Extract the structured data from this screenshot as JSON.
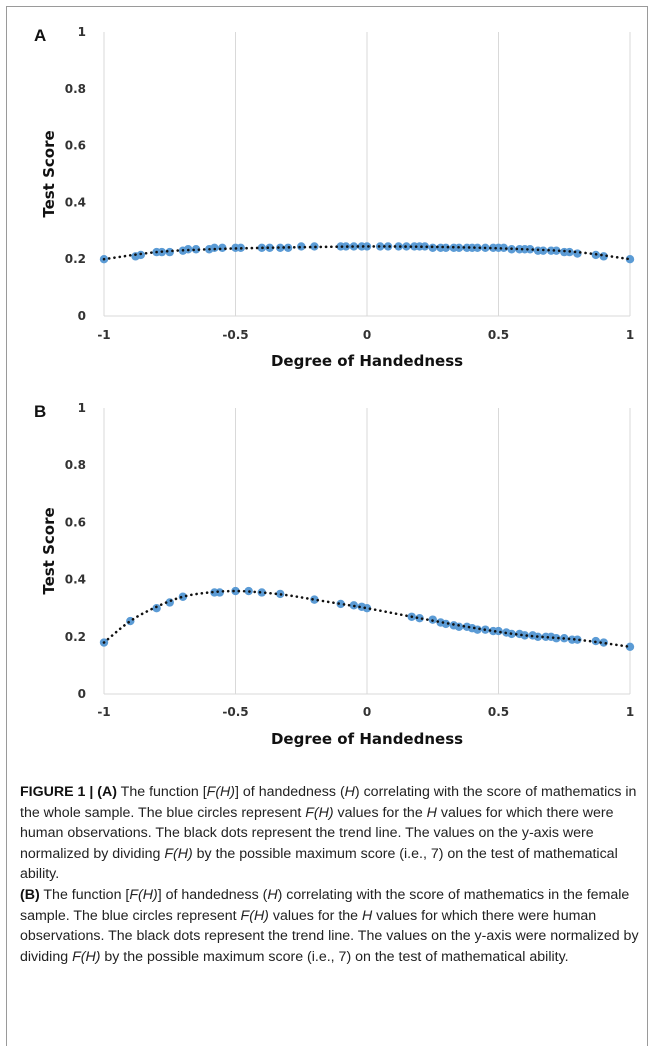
{
  "panels": [
    {
      "letter": "A"
    },
    {
      "letter": "B"
    }
  ],
  "chart_data": [
    {
      "type": "scatter",
      "panel": "A",
      "xlabel": "Degree of Handedness",
      "ylabel": "Test  Score",
      "xlim": [
        -1,
        1
      ],
      "ylim": [
        0,
        1
      ],
      "x_ticks": [
        -1,
        -0.5,
        0,
        0.5,
        1
      ],
      "x_tick_labels": [
        "-1",
        "-0.5",
        "0",
        "0.5",
        "1"
      ],
      "y_ticks": [
        0,
        0.2,
        0.4,
        0.6,
        0.8,
        1
      ],
      "y_tick_labels": [
        "0",
        "0.2",
        "0.4",
        "0.6",
        "0.8",
        "1"
      ],
      "grid": "vertical",
      "colors": {
        "points": "#5b9bd5",
        "trend": "#111111",
        "grid": "#d9d9d9"
      },
      "series": [
        {
          "kind": "points",
          "x": [
            -1,
            -0.88,
            -0.86,
            -0.8,
            -0.78,
            -0.75,
            -0.7,
            -0.68,
            -0.65,
            -0.6,
            -0.58,
            -0.55,
            -0.5,
            -0.48,
            -0.4,
            -0.37,
            -0.33,
            -0.3,
            -0.25,
            -0.2,
            -0.1,
            -0.08,
            -0.05,
            -0.02,
            0,
            0.05,
            0.08,
            0.12,
            0.15,
            0.18,
            0.2,
            0.22,
            0.25,
            0.28,
            0.3,
            0.33,
            0.35,
            0.38,
            0.4,
            0.42,
            0.45,
            0.48,
            0.5,
            0.52,
            0.55,
            0.58,
            0.6,
            0.62,
            0.65,
            0.67,
            0.7,
            0.72,
            0.75,
            0.77,
            0.8,
            0.87,
            0.9,
            1
          ],
          "y": [
            0.2,
            0.21,
            0.215,
            0.225,
            0.225,
            0.225,
            0.23,
            0.235,
            0.235,
            0.235,
            0.24,
            0.24,
            0.24,
            0.24,
            0.24,
            0.24,
            0.24,
            0.24,
            0.245,
            0.245,
            0.245,
            0.245,
            0.245,
            0.245,
            0.245,
            0.245,
            0.245,
            0.245,
            0.245,
            0.245,
            0.245,
            0.245,
            0.24,
            0.24,
            0.24,
            0.24,
            0.24,
            0.24,
            0.24,
            0.24,
            0.24,
            0.24,
            0.24,
            0.24,
            0.235,
            0.235,
            0.235,
            0.235,
            0.23,
            0.23,
            0.23,
            0.23,
            0.225,
            0.225,
            0.22,
            0.215,
            0.21,
            0.2
          ]
        },
        {
          "kind": "trend",
          "x": [
            -1,
            -0.8,
            -0.6,
            -0.4,
            -0.2,
            0,
            0.2,
            0.4,
            0.6,
            0.8,
            1
          ],
          "y": [
            0.2,
            0.225,
            0.235,
            0.24,
            0.243,
            0.245,
            0.244,
            0.241,
            0.235,
            0.225,
            0.2
          ]
        }
      ]
    },
    {
      "type": "scatter",
      "panel": "B",
      "xlabel": "Degree of Handedness",
      "ylabel": "Test Score",
      "xlim": [
        -1,
        1
      ],
      "ylim": [
        0,
        1
      ],
      "x_ticks": [
        -1,
        -0.5,
        0,
        0.5,
        1
      ],
      "x_tick_labels": [
        "-1",
        "-0.5",
        "0",
        "0.5",
        "1"
      ],
      "y_ticks": [
        0,
        0.2,
        0.4,
        0.6,
        0.8,
        1
      ],
      "y_tick_labels": [
        "0",
        "0.2",
        "0.4",
        "0.6",
        "0.8",
        "1"
      ],
      "grid": "vertical",
      "colors": {
        "points": "#5b9bd5",
        "trend": "#111111",
        "grid": "#d9d9d9"
      },
      "series": [
        {
          "kind": "points",
          "x": [
            -1,
            -0.9,
            -0.8,
            -0.75,
            -0.7,
            -0.58,
            -0.56,
            -0.5,
            -0.45,
            -0.4,
            -0.33,
            -0.2,
            -0.1,
            -0.05,
            -0.02,
            0,
            0.17,
            0.2,
            0.25,
            0.28,
            0.3,
            0.33,
            0.35,
            0.38,
            0.4,
            0.42,
            0.45,
            0.48,
            0.5,
            0.53,
            0.55,
            0.58,
            0.6,
            0.63,
            0.65,
            0.68,
            0.7,
            0.72,
            0.75,
            0.78,
            0.8,
            0.87,
            0.9,
            1
          ],
          "y": [
            0.18,
            0.255,
            0.3,
            0.32,
            0.34,
            0.355,
            0.355,
            0.36,
            0.36,
            0.355,
            0.35,
            0.33,
            0.315,
            0.31,
            0.305,
            0.3,
            0.27,
            0.265,
            0.26,
            0.25,
            0.245,
            0.24,
            0.235,
            0.235,
            0.23,
            0.225,
            0.225,
            0.22,
            0.22,
            0.215,
            0.21,
            0.21,
            0.205,
            0.205,
            0.2,
            0.2,
            0.2,
            0.195,
            0.195,
            0.19,
            0.19,
            0.185,
            0.18,
            0.165
          ]
        },
        {
          "kind": "trend",
          "x": [
            -1,
            -0.9,
            -0.8,
            -0.7,
            -0.6,
            -0.5,
            -0.4,
            -0.3,
            -0.2,
            -0.1,
            0,
            0.2,
            0.4,
            0.6,
            0.8,
            1
          ],
          "y": [
            0.18,
            0.255,
            0.305,
            0.34,
            0.355,
            0.36,
            0.355,
            0.345,
            0.33,
            0.315,
            0.3,
            0.265,
            0.232,
            0.205,
            0.19,
            0.165
          ]
        }
      ]
    }
  ],
  "caption": {
    "label": "FIGURE 1 |",
    "a_marker": "(A)",
    "a_text_1": " The function [",
    "a_fh_1": "F(H)",
    "a_text_2": "] of handedness (",
    "a_h_1": "H",
    "a_text_3": ") correlating with the score of mathematics in the whole sample. The blue circles represent ",
    "a_fh_2": "F(H)",
    "a_text_4": " values for the ",
    "a_h_2": "H",
    "a_text_5": " values for which there were human observations. The black dots represent the trend line. The values on the y-axis were normalized by dividing ",
    "a_fh_3": "F(H)",
    "a_text_6": " by the possible maximum score (i.e., 7) on the test of mathematical ability.",
    "b_marker": "(B)",
    "b_text_1": " The function [",
    "b_fh_1": "F(H)",
    "b_text_2": "] of handedness (",
    "b_h_1": "H",
    "b_text_3": ") correlating with the score of mathematics in the female sample. The blue circles represent ",
    "b_fh_2": "F(H)",
    "b_text_4": " values for the ",
    "b_h_2": "H",
    "b_text_5": " values for which there were human observations. The black dots represent the trend line. The values on the y-axis were normalized by dividing ",
    "b_fh_3": "F(H)",
    "b_text_6": " by the possible maximum score (i.e., 7) on the test of mathematical ability."
  }
}
